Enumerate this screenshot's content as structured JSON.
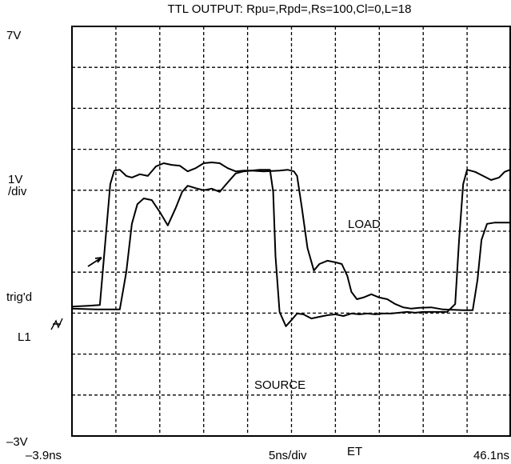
{
  "chart_data": {
    "type": "line",
    "title": "TTL OUTPUT: Rpu=,Rpd=,Rs=100,Cl=0,L=18",
    "xlim": [
      -3.9,
      46.1
    ],
    "ylim": [
      -3,
      7
    ],
    "xticks": [
      {
        "value": -3.9,
        "label": "–3.9ns"
      },
      {
        "value": 46.1,
        "label": "46.1ns"
      }
    ],
    "yticks": [
      {
        "value": 7,
        "label": "7V"
      },
      {
        "value": -3,
        "label": "–3V"
      }
    ],
    "grid": true,
    "xgrid": [
      1.1,
      6.1,
      11.1,
      16.1,
      21.1,
      26.1,
      31.1,
      36.1,
      41.1
    ],
    "ygrid": [
      -2,
      -1,
      0,
      1,
      2,
      3,
      4,
      5,
      6
    ],
    "annotations": [
      "1V",
      "/div",
      "trig'd",
      "L1",
      "LOAD",
      "SOURCE",
      "5ns/div",
      "ET"
    ],
    "series": [
      {
        "color": "#000000",
        "x": [
          -3.9,
          -2.08,
          -0.72,
          -0.08,
          0.46,
          0.92,
          1.55,
          2.28,
          2.92,
          3.83,
          4.74,
          5.65,
          6.55,
          7.46,
          8.37,
          9.28,
          10.19,
          11.1,
          12.01,
          12.92,
          13.83,
          14.74,
          15.65,
          16.55,
          17.46,
          18.65,
          19.01,
          19.28,
          19.74,
          20.46,
          21.1,
          21.74,
          22.46,
          23.37,
          24.28,
          25.19,
          26.1,
          27.01,
          27.92,
          28.83,
          29.74,
          30.65,
          31.55,
          32.46,
          33.37,
          34.28,
          35.19,
          36.1,
          37.46,
          38.83,
          39.74,
          40.19,
          40.65,
          41.1,
          42.01,
          42.92,
          43.83,
          44.74,
          45.37,
          46.0
        ],
        "values": [
          0.16,
          0.18,
          0.2,
          1.79,
          3.15,
          3.48,
          3.5,
          3.35,
          3.31,
          3.39,
          3.35,
          3.58,
          3.66,
          3.62,
          3.6,
          3.46,
          3.54,
          3.66,
          3.68,
          3.66,
          3.54,
          3.46,
          3.48,
          3.48,
          3.5,
          3.5,
          2.96,
          1.39,
          0.03,
          -0.32,
          -0.17,
          -0.01,
          -0.03,
          -0.13,
          -0.09,
          -0.05,
          -0.03,
          -0.07,
          -0.01,
          -0.03,
          -0.01,
          -0.03,
          -0.01,
          -0.01,
          0.01,
          0.03,
          0.01,
          0.03,
          0.03,
          0.03,
          0.22,
          1.79,
          3.15,
          3.5,
          3.45,
          3.35,
          3.25,
          3.31,
          3.45,
          3.5
        ]
      },
      {
        "color": "#000000",
        "x": [
          -3.9,
          -1.17,
          1.55,
          2.28,
          2.92,
          3.55,
          4.28,
          5.19,
          6.1,
          7.01,
          7.92,
          8.65,
          9.28,
          10.19,
          11.1,
          12.01,
          12.92,
          13.83,
          14.74,
          15.65,
          16.55,
          17.92,
          19.74,
          20.65,
          21.37,
          21.74,
          22.28,
          22.92,
          23.65,
          24.28,
          25.19,
          26.1,
          26.83,
          27.46,
          27.92,
          28.55,
          29.28,
          30.19,
          31.1,
          32.01,
          32.92,
          33.83,
          34.74,
          35.65,
          37.01,
          38.37,
          40.65,
          41.74,
          42.28,
          42.74,
          43.37,
          44.28,
          45.19,
          46.0
        ],
        "values": [
          0.11,
          0.09,
          0.09,
          1.0,
          2.18,
          2.66,
          2.8,
          2.76,
          2.47,
          2.14,
          2.57,
          2.96,
          3.11,
          3.05,
          3.0,
          3.04,
          2.96,
          3.19,
          3.41,
          3.46,
          3.48,
          3.46,
          3.48,
          3.5,
          3.46,
          3.35,
          2.57,
          1.59,
          1.04,
          1.2,
          1.28,
          1.24,
          1.2,
          0.91,
          0.52,
          0.34,
          0.38,
          0.46,
          0.38,
          0.34,
          0.22,
          0.14,
          0.11,
          0.13,
          0.14,
          0.09,
          0.07,
          0.07,
          0.81,
          1.79,
          2.18,
          2.21,
          2.21,
          2.21
        ]
      }
    ]
  }
}
